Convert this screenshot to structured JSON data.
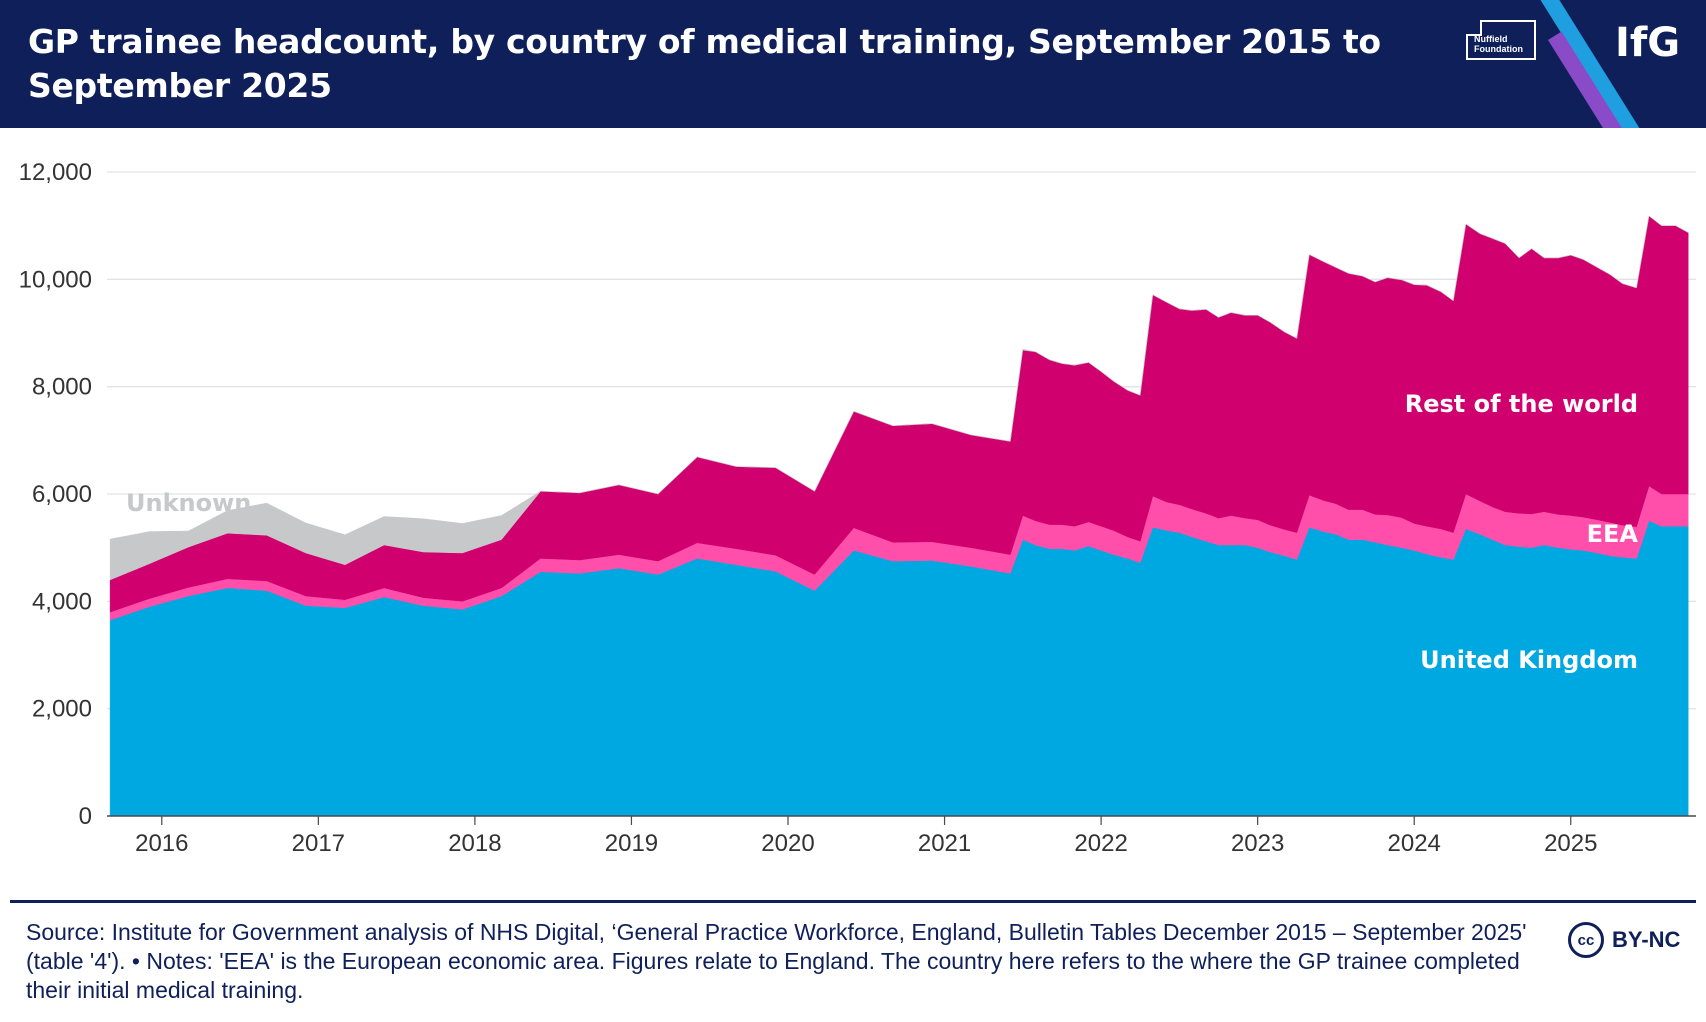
{
  "header": {
    "title": "GP trainee headcount, by country of medical training, September 2015 to September 2025",
    "partner_logo_line1": "Nuffield",
    "partner_logo_line2": "Foundation",
    "brand": "IfG"
  },
  "colors": {
    "header_bg": "#0f1f5a",
    "united_kingdom": "#00a8e1",
    "eea": "#ff4fab",
    "rest_of_world": "#d0006f",
    "unknown": "#c7c8ca"
  },
  "chart_data": {
    "type": "area",
    "stacked": true,
    "title": "GP trainee headcount, by country of medical training, September 2015 to September 2025",
    "xlabel": "",
    "ylabel": "",
    "ylim": [
      0,
      12000
    ],
    "y_ticks": [
      0,
      2000,
      4000,
      6000,
      8000,
      10000,
      12000
    ],
    "y_tick_labels": [
      "0",
      "2,000",
      "4,000",
      "6,000",
      "8,000",
      "10,000",
      "12,000"
    ],
    "x_ticks": [
      2016,
      2017,
      2018,
      2019,
      2020,
      2021,
      2022,
      2023,
      2024,
      2025
    ],
    "x_tick_labels": [
      "2016",
      "2017",
      "2018",
      "2019",
      "2020",
      "2021",
      "2022",
      "2023",
      "2024",
      "2025"
    ],
    "xlim": [
      2015.65,
      2025.8
    ],
    "grid": true,
    "x": [
      2015.67,
      2015.92,
      2016.17,
      2016.42,
      2016.67,
      2016.92,
      2017.17,
      2017.42,
      2017.67,
      2017.92,
      2018.17,
      2018.42,
      2018.67,
      2018.92,
      2019.17,
      2019.42,
      2019.67,
      2019.92,
      2020.17,
      2020.42,
      2020.67,
      2020.92,
      2021.17,
      2021.42,
      2021.5,
      2021.58,
      2021.67,
      2021.75,
      2021.83,
      2021.92,
      2022.0,
      2022.08,
      2022.17,
      2022.25,
      2022.33,
      2022.42,
      2022.5,
      2022.58,
      2022.67,
      2022.75,
      2022.83,
      2022.92,
      2023.0,
      2023.08,
      2023.17,
      2023.25,
      2023.33,
      2023.42,
      2023.5,
      2023.58,
      2023.67,
      2023.75,
      2023.83,
      2023.92,
      2024.0,
      2024.08,
      2024.17,
      2024.25,
      2024.33,
      2024.42,
      2024.5,
      2024.58,
      2024.67,
      2024.75,
      2024.83,
      2024.92,
      2025.0,
      2025.08,
      2025.17,
      2025.25,
      2025.33,
      2025.42,
      2025.5,
      2025.58,
      2025.67,
      2025.75
    ],
    "series": [
      {
        "name": "United Kingdom",
        "label": "United Kingdom",
        "values": [
          3650,
          3900,
          4100,
          4250,
          4200,
          3920,
          3880,
          4080,
          3920,
          3850,
          4100,
          4550,
          4520,
          4620,
          4500,
          4800,
          4680,
          4560,
          4200,
          4950,
          4750,
          4760,
          4650,
          4520,
          5150,
          5050,
          4980,
          4980,
          4950,
          5030,
          4950,
          4870,
          4800,
          4720,
          5380,
          5320,
          5280,
          5200,
          5120,
          5050,
          5050,
          5050,
          5000,
          4920,
          4850,
          4780,
          5380,
          5300,
          5250,
          5150,
          5150,
          5100,
          5050,
          5000,
          4950,
          4880,
          4820,
          4780,
          5350,
          5250,
          5150,
          5050,
          5020,
          5000,
          5050,
          5000,
          4970,
          4950,
          4900,
          4850,
          4820,
          4800,
          5500,
          5400,
          5400,
          5400
        ]
      },
      {
        "name": "EEA",
        "label": "EEA",
        "values": [
          150,
          150,
          160,
          170,
          180,
          180,
          150,
          170,
          150,
          150,
          150,
          250,
          250,
          250,
          250,
          290,
          300,
          300,
          300,
          420,
          350,
          350,
          350,
          350,
          450,
          450,
          450,
          450,
          450,
          450,
          450,
          450,
          400,
          400,
          580,
          530,
          520,
          520,
          520,
          500,
          550,
          500,
          520,
          500,
          490,
          500,
          600,
          580,
          570,
          560,
          560,
          520,
          560,
          560,
          500,
          520,
          530,
          500,
          650,
          620,
          610,
          620,
          620,
          630,
          620,
          620,
          630,
          620,
          620,
          620,
          600,
          590,
          650,
          600,
          600,
          600
        ]
      },
      {
        "name": "Rest of the world",
        "label": "Rest of the world",
        "values": [
          600,
          650,
          750,
          850,
          850,
          800,
          650,
          800,
          850,
          900,
          900,
          1250,
          1250,
          1300,
          1250,
          1600,
          1530,
          1630,
          1550,
          2170,
          2170,
          2200,
          2100,
          2110,
          3080,
          3150,
          3070,
          3000,
          3000,
          2970,
          2880,
          2780,
          2730,
          2720,
          3750,
          3720,
          3650,
          3700,
          3800,
          3740,
          3780,
          3780,
          3810,
          3780,
          3680,
          3620,
          4480,
          4450,
          4400,
          4400,
          4350,
          4330,
          4420,
          4430,
          4450,
          4490,
          4420,
          4320,
          5030,
          4980,
          5000,
          5000,
          4760,
          4940,
          4730,
          4780,
          4850,
          4800,
          4700,
          4620,
          4500,
          4450,
          5030,
          5000,
          5000,
          4870
        ]
      },
      {
        "name": "Unknown",
        "label": "Unknown",
        "values": [
          760,
          600,
          300,
          420,
          600,
          560,
          560,
          530,
          620,
          550,
          450,
          0,
          0,
          0,
          0,
          0,
          0,
          0,
          0,
          0,
          0,
          0,
          0,
          0,
          20,
          0,
          0,
          0,
          0,
          0,
          0,
          0,
          0,
          0,
          0,
          0,
          0,
          0,
          0,
          0,
          0,
          0,
          0,
          0,
          0,
          0,
          0,
          0,
          0,
          0,
          0,
          0,
          0,
          0,
          0,
          0,
          0,
          0,
          0,
          0,
          0,
          0,
          0,
          0,
          0,
          0,
          0,
          0,
          0,
          0,
          0,
          0,
          0,
          0,
          0,
          0
        ]
      }
    ]
  },
  "footer": {
    "source": "Source: Institute for Government analysis of NHS Digital, ‘General Practice Workforce, England, Bulletin Tables December 2015 – September 2025' (table '4'). • Notes: 'EEA' is the European economic area. Figures relate to England. The country here refers to the where the GP trainee completed their initial medical training.",
    "cc_symbol": "cc",
    "license": "BY-NC"
  }
}
